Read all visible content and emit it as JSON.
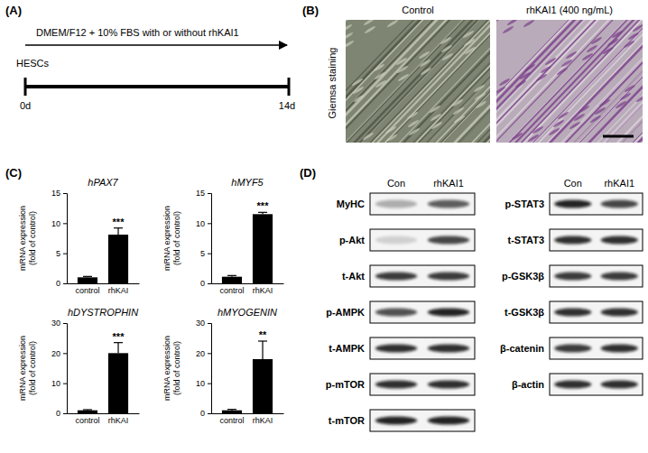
{
  "panel_a": {
    "label": "(A)",
    "medium": "DMEM/F12 + 10% FBS with or without rhKAI1",
    "cells": "HESCs",
    "start": "0d",
    "end": "14d"
  },
  "panel_b": {
    "label": "(B)",
    "row_label": "Giemsa staining",
    "columns": [
      "Control",
      "rhKAI1 (400 ng/mL)"
    ]
  },
  "panel_c": {
    "label": "(C)"
  },
  "chart_data": [
    {
      "type": "bar",
      "title": "hPAX7",
      "y_label": [
        "mRNA expression",
        "(fold of control)"
      ],
      "categories": [
        "control",
        "rhKAI"
      ],
      "values": [
        1.0,
        8.1
      ],
      "errors": [
        0.15,
        1.1
      ],
      "color": "#000000",
      "ylim": [
        0,
        15
      ],
      "yticks": [
        0,
        5,
        10,
        15
      ],
      "annotations": [
        {
          "category": 1,
          "text": "***"
        }
      ]
    },
    {
      "type": "bar",
      "title": "hMYF5",
      "y_label": [
        "mRNA expression",
        "(fold of control)"
      ],
      "categories": [
        "control",
        "rhKAI"
      ],
      "values": [
        1.1,
        11.5
      ],
      "errors": [
        0.2,
        0.3
      ],
      "color": "#000000",
      "ylim": [
        0,
        15
      ],
      "yticks": [
        0,
        5,
        10,
        15
      ],
      "annotations": [
        {
          "category": 1,
          "text": "***"
        }
      ]
    },
    {
      "type": "bar",
      "title": "hDYSTROPHIN",
      "y_label": [
        "mRNA expression",
        "(fold of control)"
      ],
      "categories": [
        "control",
        "rhKAI"
      ],
      "values": [
        1.0,
        20.0
      ],
      "errors": [
        0.2,
        3.5
      ],
      "color": "#000000",
      "ylim": [
        0,
        30
      ],
      "yticks": [
        0,
        10,
        20,
        30
      ],
      "annotations": [
        {
          "category": 1,
          "text": "***"
        }
      ]
    },
    {
      "type": "bar",
      "title": "hMYOGENIN",
      "y_label": [
        "mRNA expression",
        "(fold of control)"
      ],
      "categories": [
        "control",
        "rhKAI"
      ],
      "values": [
        1.0,
        18.0
      ],
      "errors": [
        0.3,
        6.0
      ],
      "color": "#000000",
      "ylim": [
        0,
        30
      ],
      "yticks": [
        0,
        10,
        20,
        30
      ],
      "annotations": [
        {
          "category": 1,
          "text": "**"
        }
      ]
    }
  ],
  "panel_d": {
    "label": "(D)",
    "columns": [
      "Con",
      "rhKAI1"
    ],
    "blots_left": [
      {
        "name": "MyHC",
        "intensity": [
          0.3,
          0.65
        ]
      },
      {
        "name": "p-Akt",
        "intensity": [
          0.15,
          0.75
        ]
      },
      {
        "name": "t-Akt",
        "intensity": [
          0.8,
          0.8
        ]
      },
      {
        "name": "p-AMPK",
        "intensity": [
          0.7,
          0.9
        ]
      },
      {
        "name": "t-AMPK",
        "intensity": [
          0.85,
          0.85
        ]
      },
      {
        "name": "p-mTOR",
        "intensity": [
          0.85,
          0.85
        ]
      },
      {
        "name": "t-mTOR",
        "intensity": [
          0.9,
          0.9
        ]
      }
    ],
    "blots_right": [
      {
        "name": "p-STAT3",
        "intensity": [
          0.9,
          0.75
        ]
      },
      {
        "name": "t-STAT3",
        "intensity": [
          0.85,
          0.85
        ]
      },
      {
        "name": "p-GSK3β",
        "intensity": [
          0.8,
          0.8
        ]
      },
      {
        "name": "t-GSK3β",
        "intensity": [
          0.85,
          0.85
        ]
      },
      {
        "name": "β-catenin",
        "intensity": [
          0.8,
          0.85
        ]
      },
      {
        "name": "β-actin",
        "intensity": [
          0.85,
          0.85
        ]
      }
    ]
  }
}
